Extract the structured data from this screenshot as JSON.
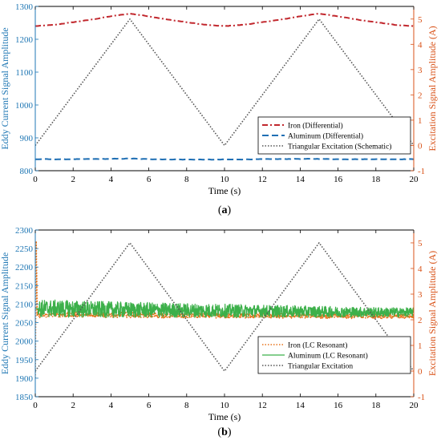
{
  "colors": {
    "left_axis": "#1f77b4",
    "right_axis": "#d95319",
    "frame": "#000000"
  },
  "chart_data": [
    {
      "type": "line",
      "panel_label": "(a)",
      "panel_label_bold": "a",
      "xlabel": "Time (s)",
      "ylabel_left": "Eddy Current Signal Amplitude",
      "ylabel_right": "Excitation Signal Amplitude (A)",
      "xlim": [
        0,
        20
      ],
      "ylim_left": [
        800,
        1300
      ],
      "ylim_right": [
        -1,
        5.5
      ],
      "xticks": [
        "0",
        "2",
        "4",
        "6",
        "8",
        "10",
        "12",
        "14",
        "16",
        "18",
        "20"
      ],
      "yticks_left": [
        "800",
        "900",
        "1000",
        "1100",
        "1200",
        "1300"
      ],
      "yticks_right": [
        "-1",
        "0",
        "1",
        "2",
        "3",
        "4",
        "5"
      ],
      "legend_position": "center-right",
      "series": [
        {
          "name": "Iron (Differential)",
          "axis": "left",
          "color": "#c1272d",
          "style": "dashdot",
          "width": 2,
          "x": [
            0,
            1,
            2,
            3,
            4,
            5,
            6,
            7,
            8,
            9,
            10,
            11,
            12,
            13,
            14,
            15,
            16,
            17,
            18,
            19,
            20
          ],
          "y": [
            1240,
            1244,
            1252,
            1260,
            1270,
            1278,
            1270,
            1260,
            1252,
            1244,
            1240,
            1244,
            1252,
            1260,
            1270,
            1278,
            1270,
            1260,
            1252,
            1244,
            1240
          ]
        },
        {
          "name": "Aluminum (Differential)",
          "axis": "left",
          "color": "#1f6fb4",
          "style": "dashed",
          "width": 2,
          "x": [
            0,
            2,
            4,
            5,
            6,
            8,
            10,
            12,
            14,
            15,
            16,
            18,
            20
          ],
          "y": [
            835,
            835,
            836,
            837,
            835,
            834,
            834,
            835,
            836,
            836,
            835,
            835,
            835
          ]
        },
        {
          "name": "Triangular Excitation (Schematic)",
          "axis": "right",
          "color": "#555555",
          "style": "dotted",
          "width": 1.6,
          "x": [
            0,
            5,
            10,
            15,
            20
          ],
          "y": [
            0,
            5,
            0,
            5,
            0
          ]
        }
      ]
    },
    {
      "type": "line",
      "panel_label": "(b)",
      "panel_label_bold": "b",
      "xlabel": "Time (s)",
      "ylabel_left": "Eddy Current Signal Amplitude",
      "ylabel_right": "Excitation Signal Amplitude (A)",
      "xlim": [
        0,
        20
      ],
      "ylim_left": [
        1850,
        2300
      ],
      "ylim_right": [
        -1,
        5.5
      ],
      "xticks": [
        "0",
        "2",
        "4",
        "6",
        "8",
        "10",
        "12",
        "14",
        "16",
        "18",
        "20"
      ],
      "yticks_left": [
        "1850",
        "1900",
        "1950",
        "2000",
        "2050",
        "2100",
        "2150",
        "2200",
        "2250",
        "2300"
      ],
      "yticks_right": [
        "-1",
        "0",
        "1",
        "2",
        "3",
        "4",
        "5"
      ],
      "legend_position": "center-right",
      "series": [
        {
          "name": "Iron (LC Resonant)",
          "axis": "left",
          "color": "#e8731a",
          "style": "dotted",
          "width": 1.6,
          "x": [
            0,
            0.05,
            0.1,
            1,
            2,
            4,
            6,
            8,
            10,
            12,
            14,
            16,
            18,
            20
          ],
          "y": [
            1900,
            2270,
            2070,
            2072,
            2072,
            2071,
            2070,
            2069,
            2069,
            2069,
            2069,
            2068,
            2068,
            2068
          ],
          "noise": 7
        },
        {
          "name": "Aluminum (LC Resonant)",
          "axis": "left",
          "color": "#3cb04a",
          "style": "solid",
          "width": 1.2,
          "x": [
            0,
            1,
            2,
            4,
            6,
            8,
            10,
            12,
            14,
            16,
            18,
            20
          ],
          "y": [
            2088,
            2088,
            2087,
            2085,
            2084,
            2083,
            2082,
            2081,
            2080,
            2079,
            2078,
            2078
          ],
          "noise_start": 24,
          "noise_end": 12
        },
        {
          "name": "Triangular Excitation",
          "axis": "right",
          "color": "#555555",
          "style": "dotted",
          "width": 1.6,
          "x": [
            0,
            5,
            10,
            15,
            20
          ],
          "y": [
            0,
            5,
            0,
            5,
            0
          ]
        }
      ]
    }
  ]
}
